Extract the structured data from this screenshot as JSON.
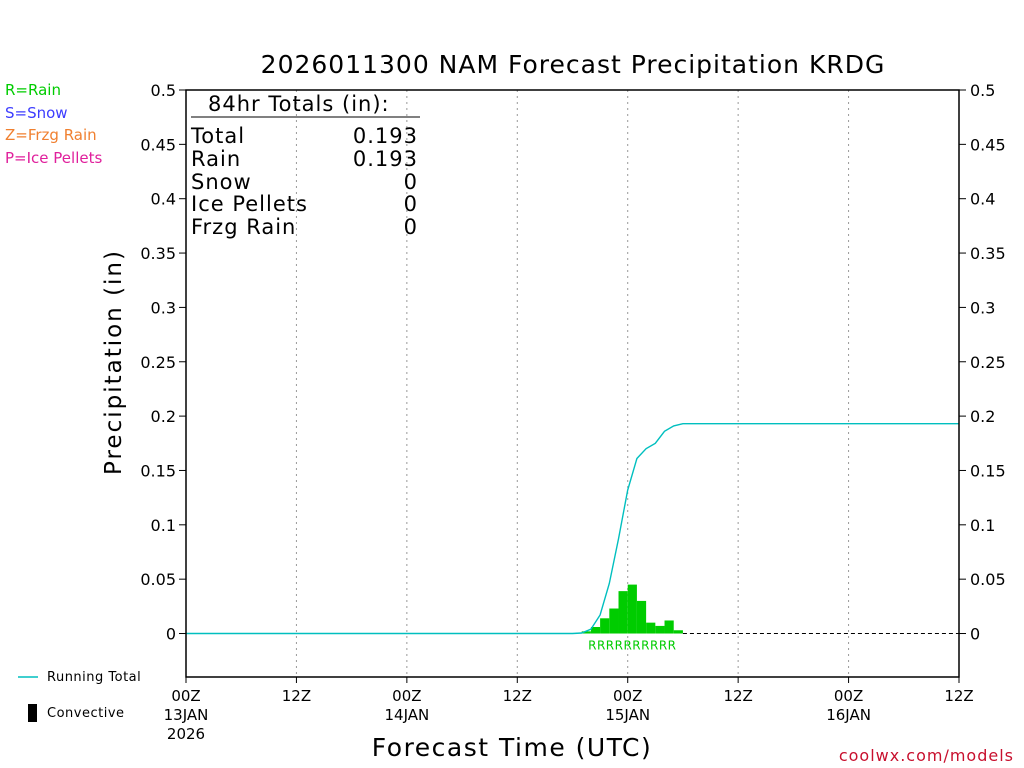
{
  "chart_data": {
    "type": "bar",
    "title": "2026011300 NAM Forecast Precipitation KRDG",
    "xlabel": "Forecast Time (UTC)",
    "ylabel": "Precipitation (in)",
    "ylim": [
      -0.04,
      0.5
    ],
    "yticks": [
      0,
      0.05,
      0.1,
      0.15,
      0.2,
      0.25,
      0.3,
      0.35,
      0.4,
      0.45,
      0.5
    ],
    "ytick_labels": [
      "0",
      "0.05",
      "0.1",
      "0.15",
      "0.2",
      "0.25",
      "0.3",
      "0.35",
      "0.4",
      "0.45",
      "0.5"
    ],
    "xlim_hours": [
      0,
      84
    ],
    "xticks": [
      {
        "hour": 0,
        "label": "00Z",
        "sub": "13JAN",
        "sub2": "2026"
      },
      {
        "hour": 12,
        "label": "12Z",
        "sub": "",
        "sub2": ""
      },
      {
        "hour": 24,
        "label": "00Z",
        "sub": "14JAN",
        "sub2": ""
      },
      {
        "hour": 36,
        "label": "12Z",
        "sub": "",
        "sub2": ""
      },
      {
        "hour": 48,
        "label": "00Z",
        "sub": "15JAN",
        "sub2": ""
      },
      {
        "hour": 60,
        "label": "12Z",
        "sub": "",
        "sub2": ""
      },
      {
        "hour": 72,
        "label": "00Z",
        "sub": "16JAN",
        "sub2": ""
      },
      {
        "hour": 84,
        "label": "12Z",
        "sub": "",
        "sub2": ""
      }
    ],
    "grid": "vertical dotted at 12-hourly ticks",
    "series": [
      {
        "name": "Hourly Precipitation (Rain)",
        "kind": "bar",
        "color": "#00cc00",
        "start_hours": [
          43,
          44,
          45,
          46,
          47,
          48,
          49,
          50,
          51,
          52,
          53
        ],
        "values": [
          0.002,
          0.006,
          0.014,
          0.023,
          0.039,
          0.045,
          0.03,
          0.01,
          0.007,
          0.012,
          0.003
        ]
      },
      {
        "name": "Running Total",
        "kind": "line",
        "color": "#00bfbf",
        "x_hours": [
          0,
          42,
          43,
          44,
          45,
          46,
          47,
          48,
          49,
          50,
          51,
          52,
          53,
          54,
          84
        ],
        "values": [
          0,
          0,
          0.0005,
          0.004,
          0.017,
          0.046,
          0.087,
          0.132,
          0.161,
          0.17,
          0.175,
          0.186,
          0.191,
          0.193,
          0.193
        ]
      }
    ],
    "ptype_marks": {
      "text": "RRRRRRRRRR",
      "color": "#00cc00"
    },
    "totals_box": {
      "header": "84hr Totals (in):",
      "rows": [
        {
          "label": "Total",
          "value": "0.193"
        },
        {
          "label": "Rain",
          "value": "0.193"
        },
        {
          "label": "Snow",
          "value": "0"
        },
        {
          "label": "Ice Pellets",
          "value": "0"
        },
        {
          "label": "Frzg Rain",
          "value": "0"
        }
      ]
    }
  },
  "legend_top": [
    {
      "text": "R=Rain",
      "color": "#00cc00"
    },
    {
      "text": "S=Snow",
      "color": "#3c3cff"
    },
    {
      "text": "Z=Frzg Rain",
      "color": "#f08030"
    },
    {
      "text": "P=Ice Pellets",
      "color": "#e0209c"
    }
  ],
  "legend_bottom": {
    "running_total": "Running Total",
    "convective": "Convective"
  },
  "credit": "coolwx.com/models"
}
